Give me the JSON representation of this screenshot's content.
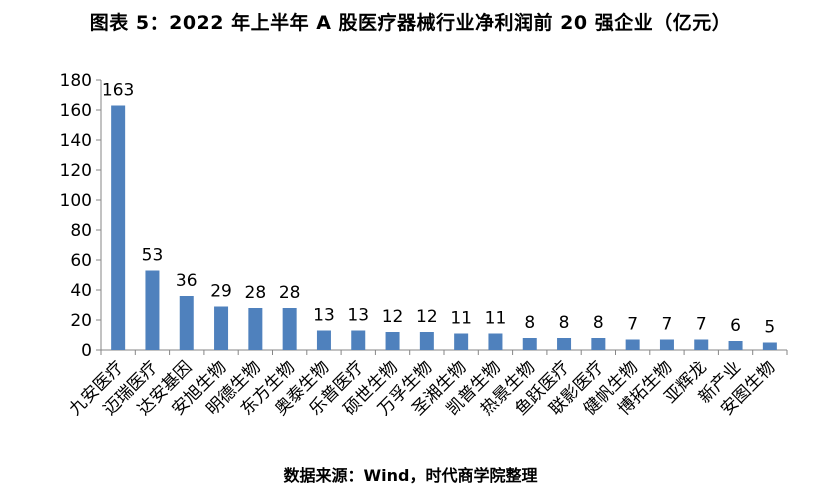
{
  "title": "图表 5：2022 年上半年 A 股医疗器械行业净利润前 20 强企业（亿元）",
  "source": "数据来源：Wind，时代商学院整理",
  "chart_data": {
    "type": "bar",
    "title": "图表 5：2022 年上半年 A 股医疗器械行业净利润前 20 强企业（亿元）",
    "categories": [
      "九安医疗",
      "迈瑞医疗",
      "达安基因",
      "安旭生物",
      "明德生物",
      "东方生物",
      "奥泰生物",
      "乐普医疗",
      "硕世生物",
      "万孚生物",
      "圣湘生物",
      "凯普生物",
      "热景生物",
      "鱼跃医疗",
      "联影医疗",
      "健帆生物",
      "博拓生物",
      "亚辉龙",
      "新产业",
      "安图生物"
    ],
    "values": [
      163,
      53,
      36,
      29,
      28,
      28,
      13,
      13,
      12,
      12,
      11,
      11,
      8,
      8,
      8,
      7,
      7,
      7,
      6,
      5
    ],
    "data_labels": [
      "163",
      "53",
      "36",
      "29",
      "28",
      "28",
      "13",
      "13",
      "12",
      "12",
      "11",
      "11",
      "8",
      "8",
      "8",
      "7",
      "7",
      "7",
      "6",
      "5"
    ],
    "yticks": [
      "0",
      "20",
      "40",
      "60",
      "80",
      "100",
      "120",
      "140",
      "160",
      "180"
    ],
    "ylim": [
      0,
      180
    ],
    "bar_color": "#4f81bd",
    "grid": false,
    "legend": "none"
  }
}
